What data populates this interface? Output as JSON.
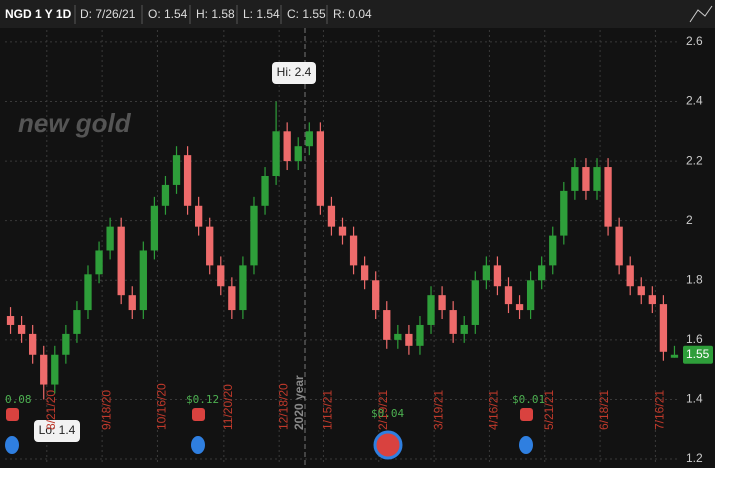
{
  "chart_data": {
    "type": "candlestick",
    "title": "NGD 1 Y 1D",
    "header": [
      "D: 7/26/21",
      "O: 1.54",
      "H: 1.58",
      "L: 1.54",
      "C: 1.55",
      "R: 0.04"
    ],
    "watermark": "new gold",
    "year_label": "2020 year",
    "hi_label": "Hi: 2.4",
    "lo_label": "Lo: 1.4",
    "last_label": "1.55",
    "events": [
      "0.08",
      "$0.12",
      "$0.04",
      "$0.01"
    ],
    "categories": [
      null,
      null,
      null,
      null,
      "8/21/20",
      null,
      null,
      null,
      null,
      "9/18/20",
      null,
      null,
      null,
      null,
      "10/16/20",
      null,
      null,
      null,
      null,
      null,
      "11/20/20",
      null,
      null,
      null,
      null,
      "12/18/20",
      null,
      null,
      null,
      "1/15/21",
      null,
      null,
      null,
      null,
      "2/19/21",
      null,
      null,
      null,
      null,
      "3/19/21",
      null,
      null,
      null,
      null,
      "4/16/21",
      null,
      null,
      null,
      null,
      "5/21/21",
      null,
      null,
      null,
      null,
      "6/18/21",
      null,
      null,
      null,
      null,
      "7/16/21",
      null
    ],
    "open": [
      1.68,
      1.65,
      1.62,
      1.55,
      1.45,
      1.55,
      1.62,
      1.7,
      1.82,
      1.9,
      1.98,
      1.75,
      1.7,
      1.9,
      2.05,
      2.12,
      2.22,
      2.05,
      1.98,
      1.85,
      1.78,
      1.7,
      1.85,
      2.05,
      2.15,
      2.3,
      2.2,
      2.25,
      2.3,
      2.05,
      1.98,
      1.95,
      1.85,
      1.8,
      1.7,
      1.6,
      1.62,
      1.58,
      1.65,
      1.75,
      1.7,
      1.62,
      1.65,
      1.8,
      1.85,
      1.78,
      1.72,
      1.7,
      1.8,
      1.85,
      1.95,
      2.1,
      2.18,
      2.1,
      2.18,
      1.98,
      1.85,
      1.78,
      1.75,
      1.72,
      1.54
    ],
    "high": [
      1.71,
      1.68,
      1.65,
      1.58,
      1.58,
      1.65,
      1.73,
      1.85,
      1.93,
      2.01,
      2.01,
      1.78,
      1.93,
      2.08,
      2.15,
      2.25,
      2.25,
      2.08,
      2.01,
      1.88,
      1.81,
      1.88,
      2.08,
      2.18,
      2.4,
      2.33,
      2.28,
      2.33,
      2.33,
      2.08,
      2.01,
      1.98,
      1.88,
      1.83,
      1.73,
      1.65,
      1.65,
      1.68,
      1.78,
      1.78,
      1.73,
      1.68,
      1.83,
      1.88,
      1.88,
      1.81,
      1.75,
      1.83,
      1.88,
      1.98,
      2.13,
      2.21,
      2.21,
      2.21,
      2.21,
      2.01,
      1.88,
      1.81,
      1.78,
      1.75,
      1.58
    ],
    "low": [
      1.62,
      1.59,
      1.52,
      1.4,
      1.42,
      1.52,
      1.59,
      1.67,
      1.79,
      1.87,
      1.72,
      1.67,
      1.67,
      1.87,
      2.02,
      2.09,
      2.02,
      1.95,
      1.82,
      1.75,
      1.67,
      1.67,
      1.82,
      2.02,
      2.12,
      2.17,
      2.17,
      2.22,
      2.02,
      1.95,
      1.92,
      1.82,
      1.77,
      1.67,
      1.57,
      1.57,
      1.55,
      1.55,
      1.62,
      1.67,
      1.59,
      1.59,
      1.62,
      1.77,
      1.75,
      1.69,
      1.67,
      1.67,
      1.77,
      1.82,
      1.92,
      2.07,
      2.07,
      2.07,
      1.95,
      1.82,
      1.75,
      1.72,
      1.69,
      1.53,
      1.54
    ],
    "close": [
      1.65,
      1.62,
      1.55,
      1.45,
      1.55,
      1.62,
      1.7,
      1.82,
      1.9,
      1.98,
      1.75,
      1.7,
      1.9,
      2.05,
      2.12,
      2.22,
      2.05,
      1.98,
      1.85,
      1.78,
      1.7,
      1.85,
      2.05,
      2.15,
      2.3,
      2.2,
      2.25,
      2.3,
      2.05,
      1.98,
      1.95,
      1.85,
      1.8,
      1.7,
      1.6,
      1.62,
      1.58,
      1.65,
      1.75,
      1.7,
      1.62,
      1.65,
      1.8,
      1.85,
      1.78,
      1.72,
      1.7,
      1.8,
      1.85,
      1.95,
      2.1,
      2.18,
      2.1,
      2.18,
      1.98,
      1.85,
      1.78,
      1.75,
      1.72,
      1.56,
      1.55
    ],
    "up_color": "#2e9e3a",
    "down_color": "#ee6b6b",
    "ylim": [
      1.18,
      2.64
    ],
    "yticks": [
      1.2,
      1.4,
      1.6,
      1.8,
      2,
      2.2,
      2.4,
      2.6
    ],
    "grid": true
  }
}
